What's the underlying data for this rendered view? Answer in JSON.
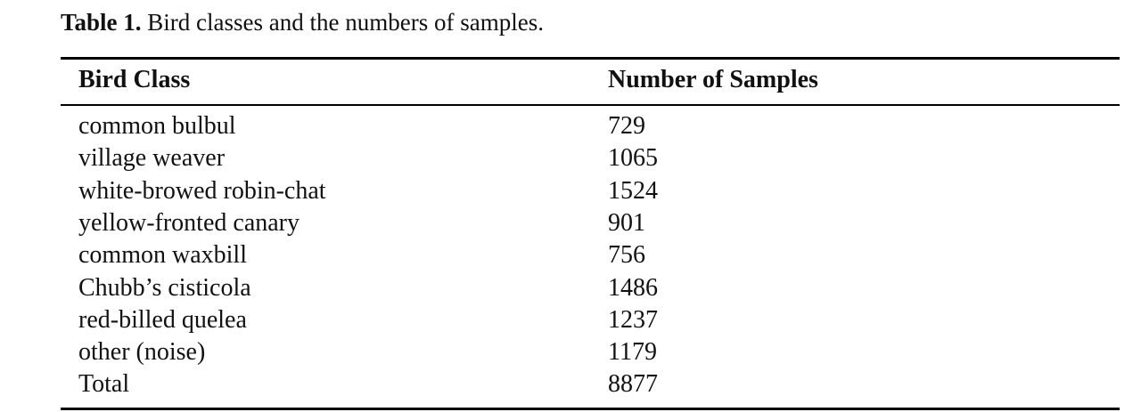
{
  "caption": {
    "label": "Table 1.",
    "text": "Bird classes and the numbers of samples."
  },
  "table": {
    "header": [
      "Bird Class",
      "Number of Samples"
    ],
    "rows": [
      [
        "common bulbul",
        729
      ],
      [
        "village weaver",
        1065
      ],
      [
        "white-browed robin-chat",
        1524
      ],
      [
        "yellow-fronted canary",
        901
      ],
      [
        "common waxbill",
        756
      ],
      [
        "Chubb’s cisticola",
        1486
      ],
      [
        "red-billed quelea",
        1237
      ],
      [
        "other (noise)",
        1179
      ],
      [
        "Total",
        8877
      ]
    ]
  }
}
